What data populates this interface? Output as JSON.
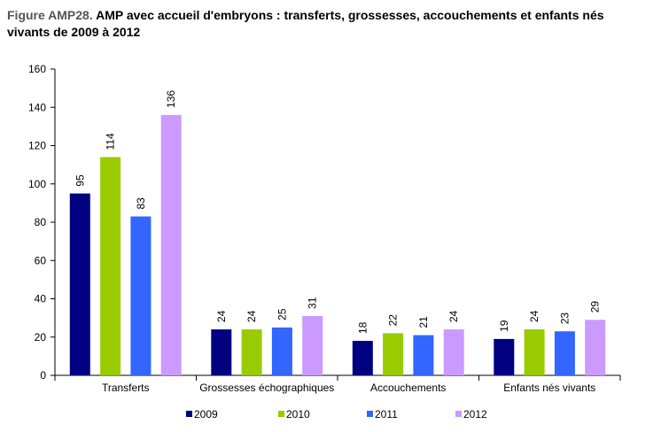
{
  "title": {
    "prefix": "Figure AMP28.",
    "text": " AMP avec accueil d'embryons : transferts, grossesses, accouchements et enfants nés vivants de 2009 à 2012"
  },
  "chart_data": {
    "type": "bar",
    "categories": [
      "Transferts",
      "Grossesses échographiques",
      "Accouchements",
      "Enfants nés vivants"
    ],
    "series": [
      {
        "name": "2009",
        "color": "#000080",
        "values": [
          95,
          24,
          18,
          19
        ]
      },
      {
        "name": "2010",
        "color": "#99CC00",
        "values": [
          114,
          24,
          22,
          24
        ]
      },
      {
        "name": "2011",
        "color": "#3366FF",
        "values": [
          83,
          25,
          21,
          23
        ]
      },
      {
        "name": "2012",
        "color": "#CC99FF",
        "values": [
          136,
          31,
          24,
          29
        ]
      }
    ],
    "ylim": [
      0,
      160
    ],
    "yticks": [
      0,
      20,
      40,
      60,
      80,
      100,
      120,
      140,
      160
    ],
    "data_labels": true,
    "grid": false,
    "legend_position": "bottom"
  }
}
